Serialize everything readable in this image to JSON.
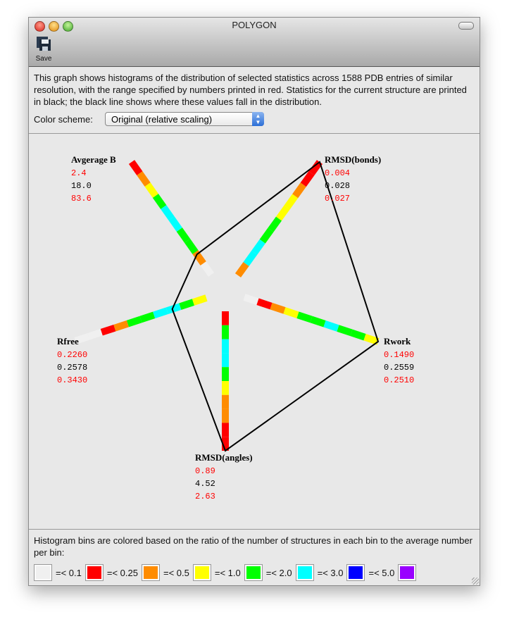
{
  "window": {
    "title": "POLYGON",
    "toolbar": {
      "save_label": "Save"
    }
  },
  "description": "This graph shows histograms of the distribution of selected statistics across 1588 PDB entries of similar resolution, with the range specified by numbers printed in red.  Statistics for the current structure are printed in black; the black line shows where these values fall in the distribution.",
  "color_scheme": {
    "label": "Color scheme:",
    "selected": "Original (relative scaling)"
  },
  "colors": {
    "white": "#f0f0f0",
    "red": "#ff0000",
    "orange": "#ff8c00",
    "yellow": "#ffff00",
    "green": "#00ff00",
    "cyan": "#00ffff",
    "blue": "#0000ff",
    "purple": "#9900ff",
    "range": "#ff0000",
    "current": "#000000"
  },
  "stats": [
    {
      "name": "Avgerage B",
      "min": "2.4",
      "current": "18.0",
      "max": "83.6",
      "bins": [
        "white",
        "orange",
        "green",
        "green",
        "cyan",
        "cyan",
        "green",
        "yellow",
        "orange",
        "red"
      ],
      "current_position": 0.18
    },
    {
      "name": "RMSD(bonds)",
      "min": "0.004",
      "current": "0.028",
      "max": "0.027",
      "bins": [
        "orange",
        "cyan",
        "cyan",
        "green",
        "green",
        "yellow",
        "yellow",
        "orange",
        "red",
        "red"
      ],
      "current_position": 1.0
    },
    {
      "name": "Rwork",
      "min": "0.1490",
      "current": "0.2559",
      "max": "0.2510",
      "bins": [
        "white",
        "red",
        "orange",
        "yellow",
        "green",
        "green",
        "cyan",
        "green",
        "green",
        "yellow"
      ],
      "current_position": 1.0
    },
    {
      "name": "RMSD(angles)",
      "min": "0.89",
      "current": "4.52",
      "max": "2.63",
      "bins": [
        "red",
        "green",
        "cyan",
        "cyan",
        "green",
        "yellow",
        "orange",
        "orange",
        "red",
        "red"
      ],
      "current_position": 1.0
    },
    {
      "name": "Rfree",
      "min": "0.2260",
      "current": "0.2578",
      "max": "0.3430",
      "bins": [
        "yellow",
        "green",
        "cyan",
        "cyan",
        "green",
        "green",
        "orange",
        "red",
        "white",
        "white"
      ],
      "current_position": 0.26
    }
  ],
  "legend": {
    "text": "Histogram bins are colored based on the ratio of the number of structures in each bin to the average number per bin:",
    "items": [
      {
        "color": "white",
        "label": "=< 0.1"
      },
      {
        "color": "red",
        "label": "=< 0.25"
      },
      {
        "color": "orange",
        "label": "=< 0.5"
      },
      {
        "color": "yellow",
        "label": "=< 1.0"
      },
      {
        "color": "green",
        "label": "=< 2.0"
      },
      {
        "color": "cyan",
        "label": "=< 3.0"
      },
      {
        "color": "blue",
        "label": "=< 5.0"
      },
      {
        "color": "purple",
        "label": ""
      }
    ]
  }
}
